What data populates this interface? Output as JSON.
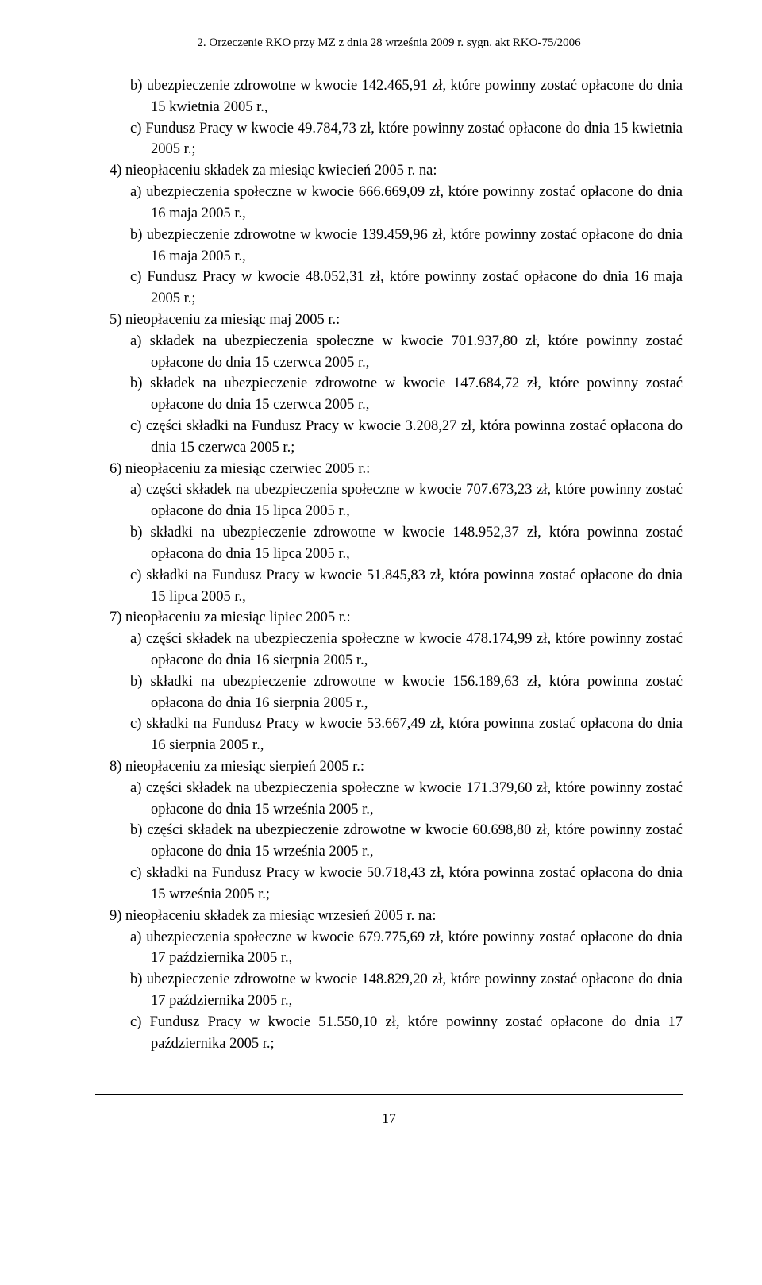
{
  "header": "2. Orzeczenie RKO przy MZ  z dnia 28 września 2009 r.  sygn.  akt RKO-75/2006",
  "lines": [
    {
      "cls": "sub-item",
      "text": "b) ubezpieczenie zdrowotne w kwocie 142.465,91 zł, które powinny zostać opłacone do dnia 15 kwietnia 2005 r.,"
    },
    {
      "cls": "sub-item",
      "text": "c) Fundusz Pracy w kwocie 49.784,73 zł, które powinny zostać opłacone do dnia 15 kwietnia 2005 r.;"
    },
    {
      "cls": "main-item",
      "text": "4) nieopłaceniu składek za miesiąc kwiecień 2005 r. na:"
    },
    {
      "cls": "sub-item",
      "text": "a) ubezpieczenia społeczne w kwocie 666.669,09 zł, które powinny zostać opłacone do dnia 16 maja 2005 r.,"
    },
    {
      "cls": "sub-item",
      "text": "b) ubezpieczenie zdrowotne w kwocie 139.459,96 zł, które powinny zostać opłacone do dnia 16 maja 2005 r.,"
    },
    {
      "cls": "sub-item",
      "text": "c) Fundusz Pracy w kwocie 48.052,31 zł, które powinny zostać opłacone do dnia 16 maja 2005 r.;"
    },
    {
      "cls": "main-item",
      "text": "5) nieopłaceniu za miesiąc maj 2005 r.:"
    },
    {
      "cls": "sub-item",
      "text": "a) składek na ubezpieczenia społeczne w kwocie 701.937,80 zł, które powinny zostać opłacone do dnia 15 czerwca 2005 r.,"
    },
    {
      "cls": "sub-item",
      "text": "b) składek na ubezpieczenie zdrowotne w kwocie 147.684,72 zł, które powinny zostać opłacone do dnia 15 czerwca 2005 r.,"
    },
    {
      "cls": "sub-item",
      "text": "c) części składki na Fundusz Pracy w kwocie 3.208,27 zł, która powinna zostać opłacona do dnia 15 czerwca 2005 r.;"
    },
    {
      "cls": "main-item",
      "text": "6) nieopłaceniu za miesiąc czerwiec 2005 r.:"
    },
    {
      "cls": "sub-item",
      "text": "a) części składek na ubezpieczenia społeczne w kwocie 707.673,23 zł, które powinny zostać opłacone do dnia 15 lipca 2005 r.,"
    },
    {
      "cls": "sub-item",
      "text": "b) składki na ubezpieczenie zdrowotne w kwocie 148.952,37 zł, która powinna zostać opłacona do dnia 15 lipca 2005 r.,"
    },
    {
      "cls": "sub-item",
      "text": "c) składki na Fundusz Pracy w kwocie 51.845,83 zł, która powinna zostać opłacone do dnia 15 lipca 2005 r.,"
    },
    {
      "cls": "main-item",
      "text": "7) nieopłaceniu za miesiąc lipiec 2005 r.:"
    },
    {
      "cls": "sub-item",
      "text": "a) części składek na ubezpieczenia społeczne w kwocie 478.174,99 zł, które powinny zostać opłacone do dnia 16 sierpnia 2005 r.,"
    },
    {
      "cls": "sub-item",
      "text": "b) składki na ubezpieczenie zdrowotne w kwocie 156.189,63 zł, która powinna zostać opłacona do dnia 16 sierpnia 2005 r.,"
    },
    {
      "cls": "sub-item",
      "text": "c) składki na Fundusz Pracy w kwocie 53.667,49 zł, która powinna zostać opłacona do dnia 16 sierpnia 2005 r.,"
    },
    {
      "cls": "main-item",
      "text": "8) nieopłaceniu za miesiąc sierpień 2005 r.:"
    },
    {
      "cls": "sub-item",
      "text": "a) części składek na ubezpieczenia społeczne w kwocie 171.379,60 zł, które powinny zostać opłacone do dnia 15 września 2005 r.,"
    },
    {
      "cls": "sub-item",
      "text": "b) części składek na ubezpieczenie zdrowotne w kwocie 60.698,80 zł, które powinny zostać opłacone do dnia 15 września 2005 r.,"
    },
    {
      "cls": "sub-item",
      "text": "c) składki na Fundusz Pracy w kwocie 50.718,43 zł, która powinna zostać opłacona do dnia 15 września 2005 r.;"
    },
    {
      "cls": "main-item",
      "text": "9) nieopłaceniu składek za miesiąc wrzesień 2005 r. na:"
    },
    {
      "cls": "sub-item",
      "text": "a) ubezpieczenia społeczne w kwocie 679.775,69 zł, które powinny zostać opłacone do dnia 17 października 2005 r.,"
    },
    {
      "cls": "sub-item",
      "text": "b) ubezpieczenie zdrowotne w kwocie 148.829,20 zł, które powinny zostać opłacone do dnia 17 października 2005 r.,"
    },
    {
      "cls": "sub-item",
      "text": "c) Fundusz Pracy w kwocie 51.550,10 zł, które powinny zostać opłacone do dnia 17 października 2005 r.;"
    }
  ],
  "pageNumber": "17"
}
